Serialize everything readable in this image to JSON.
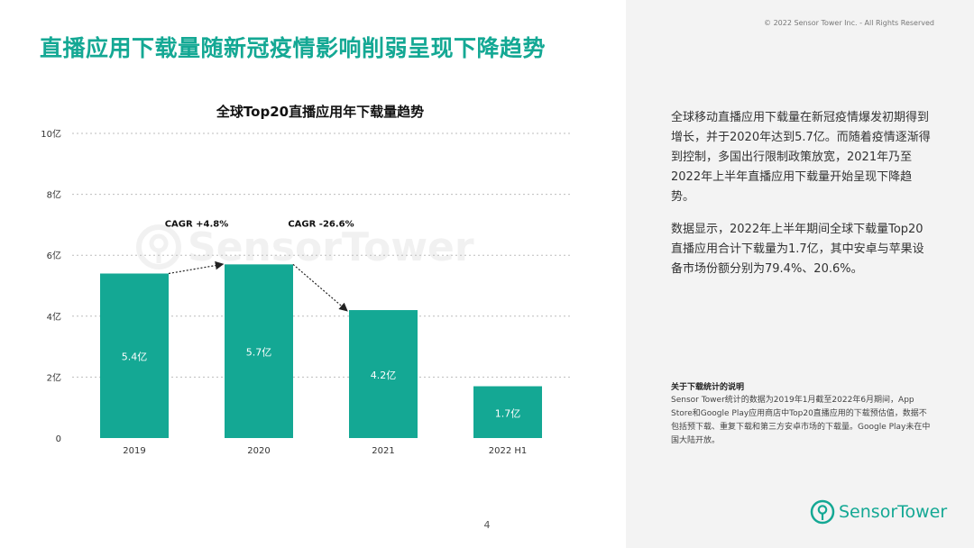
{
  "slide": {
    "title": "直播应用下载量随新冠疫情影响削弱呈现下降趋势",
    "copyright": "© 2022 Sensor Tower Inc. - All Rights Reserved",
    "page_number": "4"
  },
  "chart_data": {
    "type": "bar",
    "title": "全球Top20直播应用年下载量趋势",
    "categories": [
      "2019",
      "2020",
      "2021",
      "2022 H1"
    ],
    "values": [
      5.4,
      5.7,
      4.2,
      1.7
    ],
    "data_labels": [
      "5.4亿",
      "5.7亿",
      "4.2亿",
      "1.7亿"
    ],
    "ylim": [
      0,
      10
    ],
    "yticks": [
      0,
      2,
      4,
      6,
      8,
      10
    ],
    "ytick_labels": [
      "0",
      "2亿",
      "4亿",
      "6亿",
      "8亿",
      "10亿"
    ],
    "grid": true,
    "bar_color": "#14a894",
    "annotations": [
      {
        "text": "CAGR +4.8%",
        "from": "2019",
        "to": "2020"
      },
      {
        "text": "CAGR -26.6%",
        "from": "2020",
        "to": "2021"
      }
    ],
    "watermark": "SensorTower"
  },
  "sidebar": {
    "paragraph1": "全球移动直播应用下载量在新冠疫情爆发初期得到增长，并于2020年达到5.7亿。而随着疫情逐渐得到控制，多国出行限制政策放宽，2021年乃至2022年上半年直播应用下载量开始呈现下降趋势。",
    "paragraph2": "数据显示，2022年上半年期间全球下载量Top20直播应用合计下载量为1.7亿，其中安卓与苹果设备市场份额分别为79.4%、20.6%。",
    "note_title": "关于下载统计的说明",
    "note_body": "Sensor Tower统计的数据为2019年1月截至2022年6月期间，App Store和Google Play应用商店中Top20直播应用的下载预估值，数据不包括预下载、重复下载和第三方安卓市场的下载量。Google Play未在中国大陆开放。",
    "brand_name": "SensorTower"
  },
  "colors": {
    "accent": "#14a894",
    "sidebar_bg": "#f3f3f3"
  }
}
